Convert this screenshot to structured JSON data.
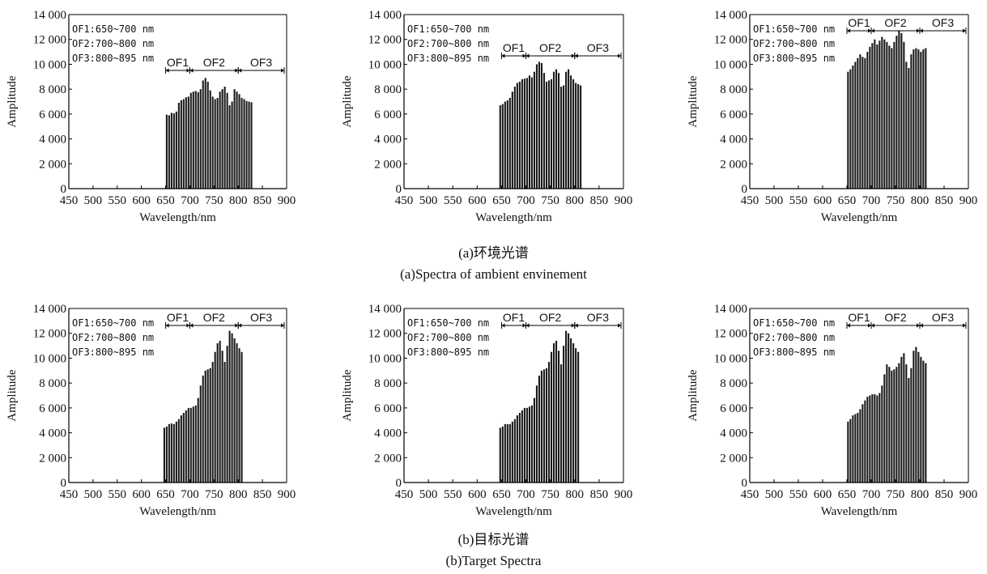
{
  "captions": {
    "top_cn": "(a)环境光谱",
    "top_en": "(a)Spectra of ambient envinement",
    "bottom_cn": "(b)目标光谱",
    "bottom_en": "(b)Target Spectra"
  },
  "colors": {
    "bar": "#1a1a1a",
    "axis": "#000000",
    "text": "#111111"
  },
  "chart_data": [
    {
      "type": "bar",
      "group": "ambient",
      "xlabel": "Wavelength/nm",
      "ylabel": "Amplitude",
      "xlim": [
        450,
        900
      ],
      "ylim": [
        0,
        14000
      ],
      "xticks": [
        "450",
        "500",
        "550",
        "600",
        "650",
        "700",
        "750",
        "800",
        "850",
        "900"
      ],
      "yticks": [
        "0",
        "2 000",
        "4 000",
        "6 000",
        "8 000",
        "10 000",
        "12 000",
        "14 000"
      ],
      "legend_lines": [
        "OF1:650~700 nm",
        "OF2:700~800 nm",
        "OF3:800~895 nm"
      ],
      "bands": [
        "OF1",
        "OF2",
        "OF3"
      ],
      "x_start": 650,
      "x_step": 5,
      "values": [
        5950,
        5900,
        6100,
        6050,
        6200,
        6900,
        7100,
        7200,
        7350,
        7400,
        7700,
        7800,
        7850,
        7750,
        8000,
        8700,
        8900,
        8600,
        7900,
        7400,
        7200,
        7300,
        7800,
        8000,
        8200,
        7700,
        6700,
        7000,
        8000,
        7800,
        7600,
        7300,
        7200,
        7050,
        7000,
        6950
      ]
    },
    {
      "type": "bar",
      "group": "ambient",
      "xlabel": "Wavelength/nm",
      "ylabel": "Amplitude",
      "xlim": [
        450,
        900
      ],
      "ylim": [
        0,
        14000
      ],
      "xticks": [
        "450",
        "500",
        "550",
        "600",
        "650",
        "700",
        "750",
        "800",
        "850",
        "900"
      ],
      "yticks": [
        "0",
        "2 000",
        "4 000",
        "6 000",
        "8 000",
        "10 000",
        "12 000",
        "14 000"
      ],
      "legend_lines": [
        "OF1:650~700 nm",
        "OF2:700~800 nm",
        "OF3:800~895 nm"
      ],
      "bands": [
        "OF1",
        "OF2",
        "OF3"
      ],
      "x_start": 645,
      "x_step": 5,
      "values": [
        6700,
        6800,
        7000,
        7100,
        7300,
        7800,
        8200,
        8500,
        8600,
        8800,
        8850,
        8900,
        9100,
        8950,
        9400,
        10000,
        10200,
        10100,
        9300,
        8600,
        8700,
        8800,
        9400,
        9600,
        9300,
        8200,
        8300,
        9400,
        9600,
        9100,
        8800,
        8500,
        8400,
        8300
      ]
    },
    {
      "type": "bar",
      "group": "ambient",
      "xlabel": "Wavelength/nm",
      "ylabel": "Amplitude",
      "xlim": [
        450,
        900
      ],
      "ylim": [
        0,
        14000
      ],
      "xticks": [
        "450",
        "500",
        "550",
        "600",
        "650",
        "700",
        "750",
        "800",
        "850",
        "900"
      ],
      "yticks": [
        "0",
        "2 000",
        "4 000",
        "6 000",
        "8 000",
        "10 000",
        "12 000",
        "14 000"
      ],
      "legend_lines": [
        "OF1:650~700 nm",
        "OF2:700~800 nm",
        "OF3:800~895 nm"
      ],
      "bands": [
        "OF1",
        "OF2",
        "OF3"
      ],
      "x_start": 650,
      "x_step": 5,
      "values": [
        9400,
        9600,
        9900,
        10200,
        10500,
        10800,
        10600,
        10500,
        11000,
        11400,
        11700,
        12000,
        11600,
        11900,
        12200,
        12000,
        11800,
        11500,
        11300,
        11800,
        12300,
        12700,
        12500,
        11800,
        10200,
        9700,
        10800,
        11200,
        11300,
        11200,
        11000,
        11200,
        11300
      ]
    },
    {
      "type": "bar",
      "group": "target",
      "xlabel": "Wavelength/nm",
      "ylabel": "Amplitude",
      "xlim": [
        450,
        900
      ],
      "ylim": [
        0,
        14000
      ],
      "xticks": [
        "450",
        "500",
        "550",
        "600",
        "650",
        "700",
        "750",
        "800",
        "850",
        "900"
      ],
      "yticks": [
        "0",
        "2 000",
        "4 000",
        "6 000",
        "8 000",
        "10 000",
        "12 000",
        "14 000"
      ],
      "legend_lines": [
        "OF1:650~700 nm",
        "OF2:700~800 nm",
        "OF3:800~895 nm"
      ],
      "bands": [
        "OF1",
        "OF2",
        "OF3"
      ],
      "x_start": 645,
      "x_step": 5,
      "values": [
        4400,
        4500,
        4700,
        4750,
        4700,
        4900,
        5100,
        5400,
        5600,
        5800,
        6000,
        6000,
        6100,
        6200,
        6800,
        7800,
        8600,
        9000,
        9100,
        9200,
        9700,
        10500,
        11200,
        11400,
        10600,
        9700,
        11000,
        12200,
        12000,
        11600,
        11200,
        10800,
        10500
      ]
    },
    {
      "type": "bar",
      "group": "target",
      "xlabel": "Wavelength/nm",
      "ylabel": "Amplitude",
      "xlim": [
        450,
        900
      ],
      "ylim": [
        0,
        14000
      ],
      "xticks": [
        "450",
        "500",
        "550",
        "600",
        "650",
        "700",
        "750",
        "800",
        "850",
        "900"
      ],
      "yticks": [
        "0",
        "2 000",
        "4 000",
        "6 000",
        "8 000",
        "10 000",
        "12 000",
        "14 000"
      ],
      "legend_lines": [
        "OF1:650~700 nm",
        "OF2:700~800 nm",
        "OF3:800~895 nm"
      ],
      "bands": [
        "OF1",
        "OF2",
        "OF3"
      ],
      "x_start": 645,
      "x_step": 5,
      "values": [
        4400,
        4500,
        4700,
        4700,
        4700,
        4900,
        5100,
        5400,
        5600,
        5800,
        6000,
        6000,
        6100,
        6200,
        6800,
        7800,
        8600,
        9000,
        9100,
        9200,
        9700,
        10500,
        11200,
        11400,
        10600,
        9500,
        11000,
        12200,
        12000,
        11600,
        11200,
        10800,
        10500
      ]
    },
    {
      "type": "bar",
      "group": "target",
      "xlabel": "Wavelength/nm",
      "ylabel": "Amplitude",
      "xlim": [
        450,
        900
      ],
      "ylim": [
        0,
        14000
      ],
      "xticks": [
        "450",
        "500",
        "550",
        "600",
        "650",
        "700",
        "750",
        "800",
        "850",
        "900"
      ],
      "yticks": [
        "0",
        "2 000",
        "4 000",
        "6 000",
        "8 000",
        "10 000",
        "12 000",
        "14 000"
      ],
      "legend_lines": [
        "OF1:650~700 nm",
        "OF2:700~800 nm",
        "OF3:800~895 nm"
      ],
      "bands": [
        "OF1",
        "OF2",
        "OF3"
      ],
      "x_start": 650,
      "x_step": 5,
      "values": [
        4900,
        5100,
        5400,
        5500,
        5600,
        5900,
        6300,
        6600,
        6900,
        7000,
        7100,
        7100,
        7000,
        7200,
        7800,
        8700,
        9500,
        9300,
        9000,
        9100,
        9300,
        9600,
        10100,
        10400,
        9500,
        8400,
        9200,
        10600,
        10900,
        10500,
        10100,
        9800,
        9600
      ]
    }
  ]
}
